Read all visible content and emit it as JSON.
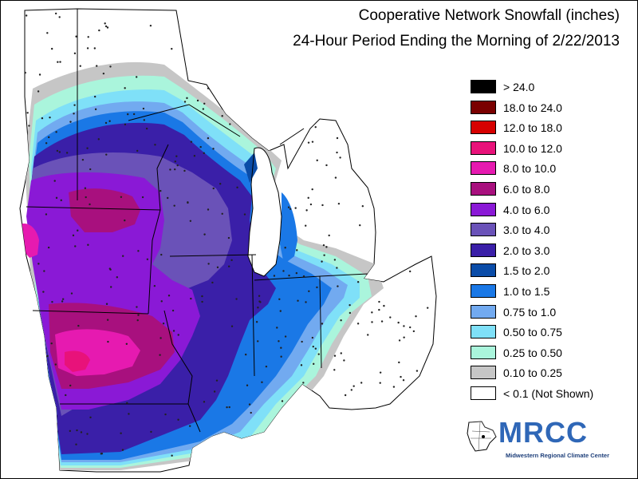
{
  "map": {
    "title": "Cooperative Network Snowfall (inches)",
    "subtitle": "24-Hour Period Ending the Morning of 2/22/2013",
    "region": "Midwest United States",
    "legend_placement": "right"
  },
  "legend": [
    {
      "label": "> 24.0",
      "color": "#000000"
    },
    {
      "label": "18.0 to 24.0",
      "color": "#7a0000"
    },
    {
      "label": "12.0 to 18.0",
      "color": "#d60000"
    },
    {
      "label": "10.0 to 12.0",
      "color": "#e8127a"
    },
    {
      "label": "8.0 to 10.0",
      "color": "#e61ab0"
    },
    {
      "label": "6.0 to 8.0",
      "color": "#a8107e"
    },
    {
      "label": "4.0 to 6.0",
      "color": "#8a19d6"
    },
    {
      "label": "3.0 to 4.0",
      "color": "#6a52b8"
    },
    {
      "label": "2.0 to 3.0",
      "color": "#3a1fa8"
    },
    {
      "label": "1.5 to 2.0",
      "color": "#0a4ca8"
    },
    {
      "label": "1.0 to 1.5",
      "color": "#1a78e6"
    },
    {
      "label": "0.75 to 1.0",
      "color": "#72aaf0"
    },
    {
      "label": "0.50 to 0.75",
      "color": "#7fe0f8"
    },
    {
      "label": "0.25 to 0.50",
      "color": "#aaf5dc"
    },
    {
      "label": "0.10 to 0.25",
      "color": "#c6c6c6"
    },
    {
      "label": "< 0.1 (Not Shown)",
      "color": "#ffffff"
    }
  ],
  "logo": {
    "text": "MRCC",
    "subtext": "Midwestern Regional Climate Center",
    "color": "#2f67b7"
  }
}
